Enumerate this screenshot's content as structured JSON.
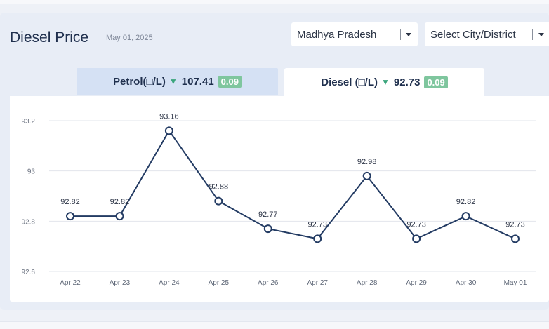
{
  "header": {
    "title": "Diesel Price",
    "date": "May 01, 2025"
  },
  "filters": {
    "state": "Madhya Pradesh",
    "city": "Select City/District"
  },
  "tabs": {
    "petrol": {
      "label": "Petrol(□/L)",
      "price": "107.41",
      "change": "0.09"
    },
    "diesel": {
      "label": "Diesel (□/L)",
      "price": "92.73",
      "change": "0.09"
    }
  },
  "colors": {
    "line": "#233b63",
    "down_arrow": "#3aa57c",
    "badge": "#7fc69e"
  },
  "chart_data": {
    "type": "line",
    "title": "",
    "xlabel": "",
    "ylabel": "",
    "categories": [
      "Apr 22",
      "Apr 23",
      "Apr 24",
      "Apr 25",
      "Apr 26",
      "Apr 27",
      "Apr 28",
      "Apr 29",
      "Apr 30",
      "May 01"
    ],
    "series": [
      {
        "values": [
          92.82,
          92.82,
          93.16,
          92.88,
          92.77,
          92.73,
          92.98,
          92.73,
          92.82,
          92.73
        ]
      }
    ],
    "data_labels": [
      "92.82",
      "92.82",
      "93.16",
      "92.88",
      "92.77",
      "92.73",
      "92.98",
      "92.73",
      "92.82",
      "92.73"
    ],
    "ylim": [
      92.6,
      93.2
    ],
    "yticks": [
      "92.6",
      "92.8",
      "93",
      "93.2"
    ],
    "yticks_values": [
      92.6,
      92.8,
      93.0,
      93.2
    ],
    "grid": true,
    "legend": "none"
  }
}
